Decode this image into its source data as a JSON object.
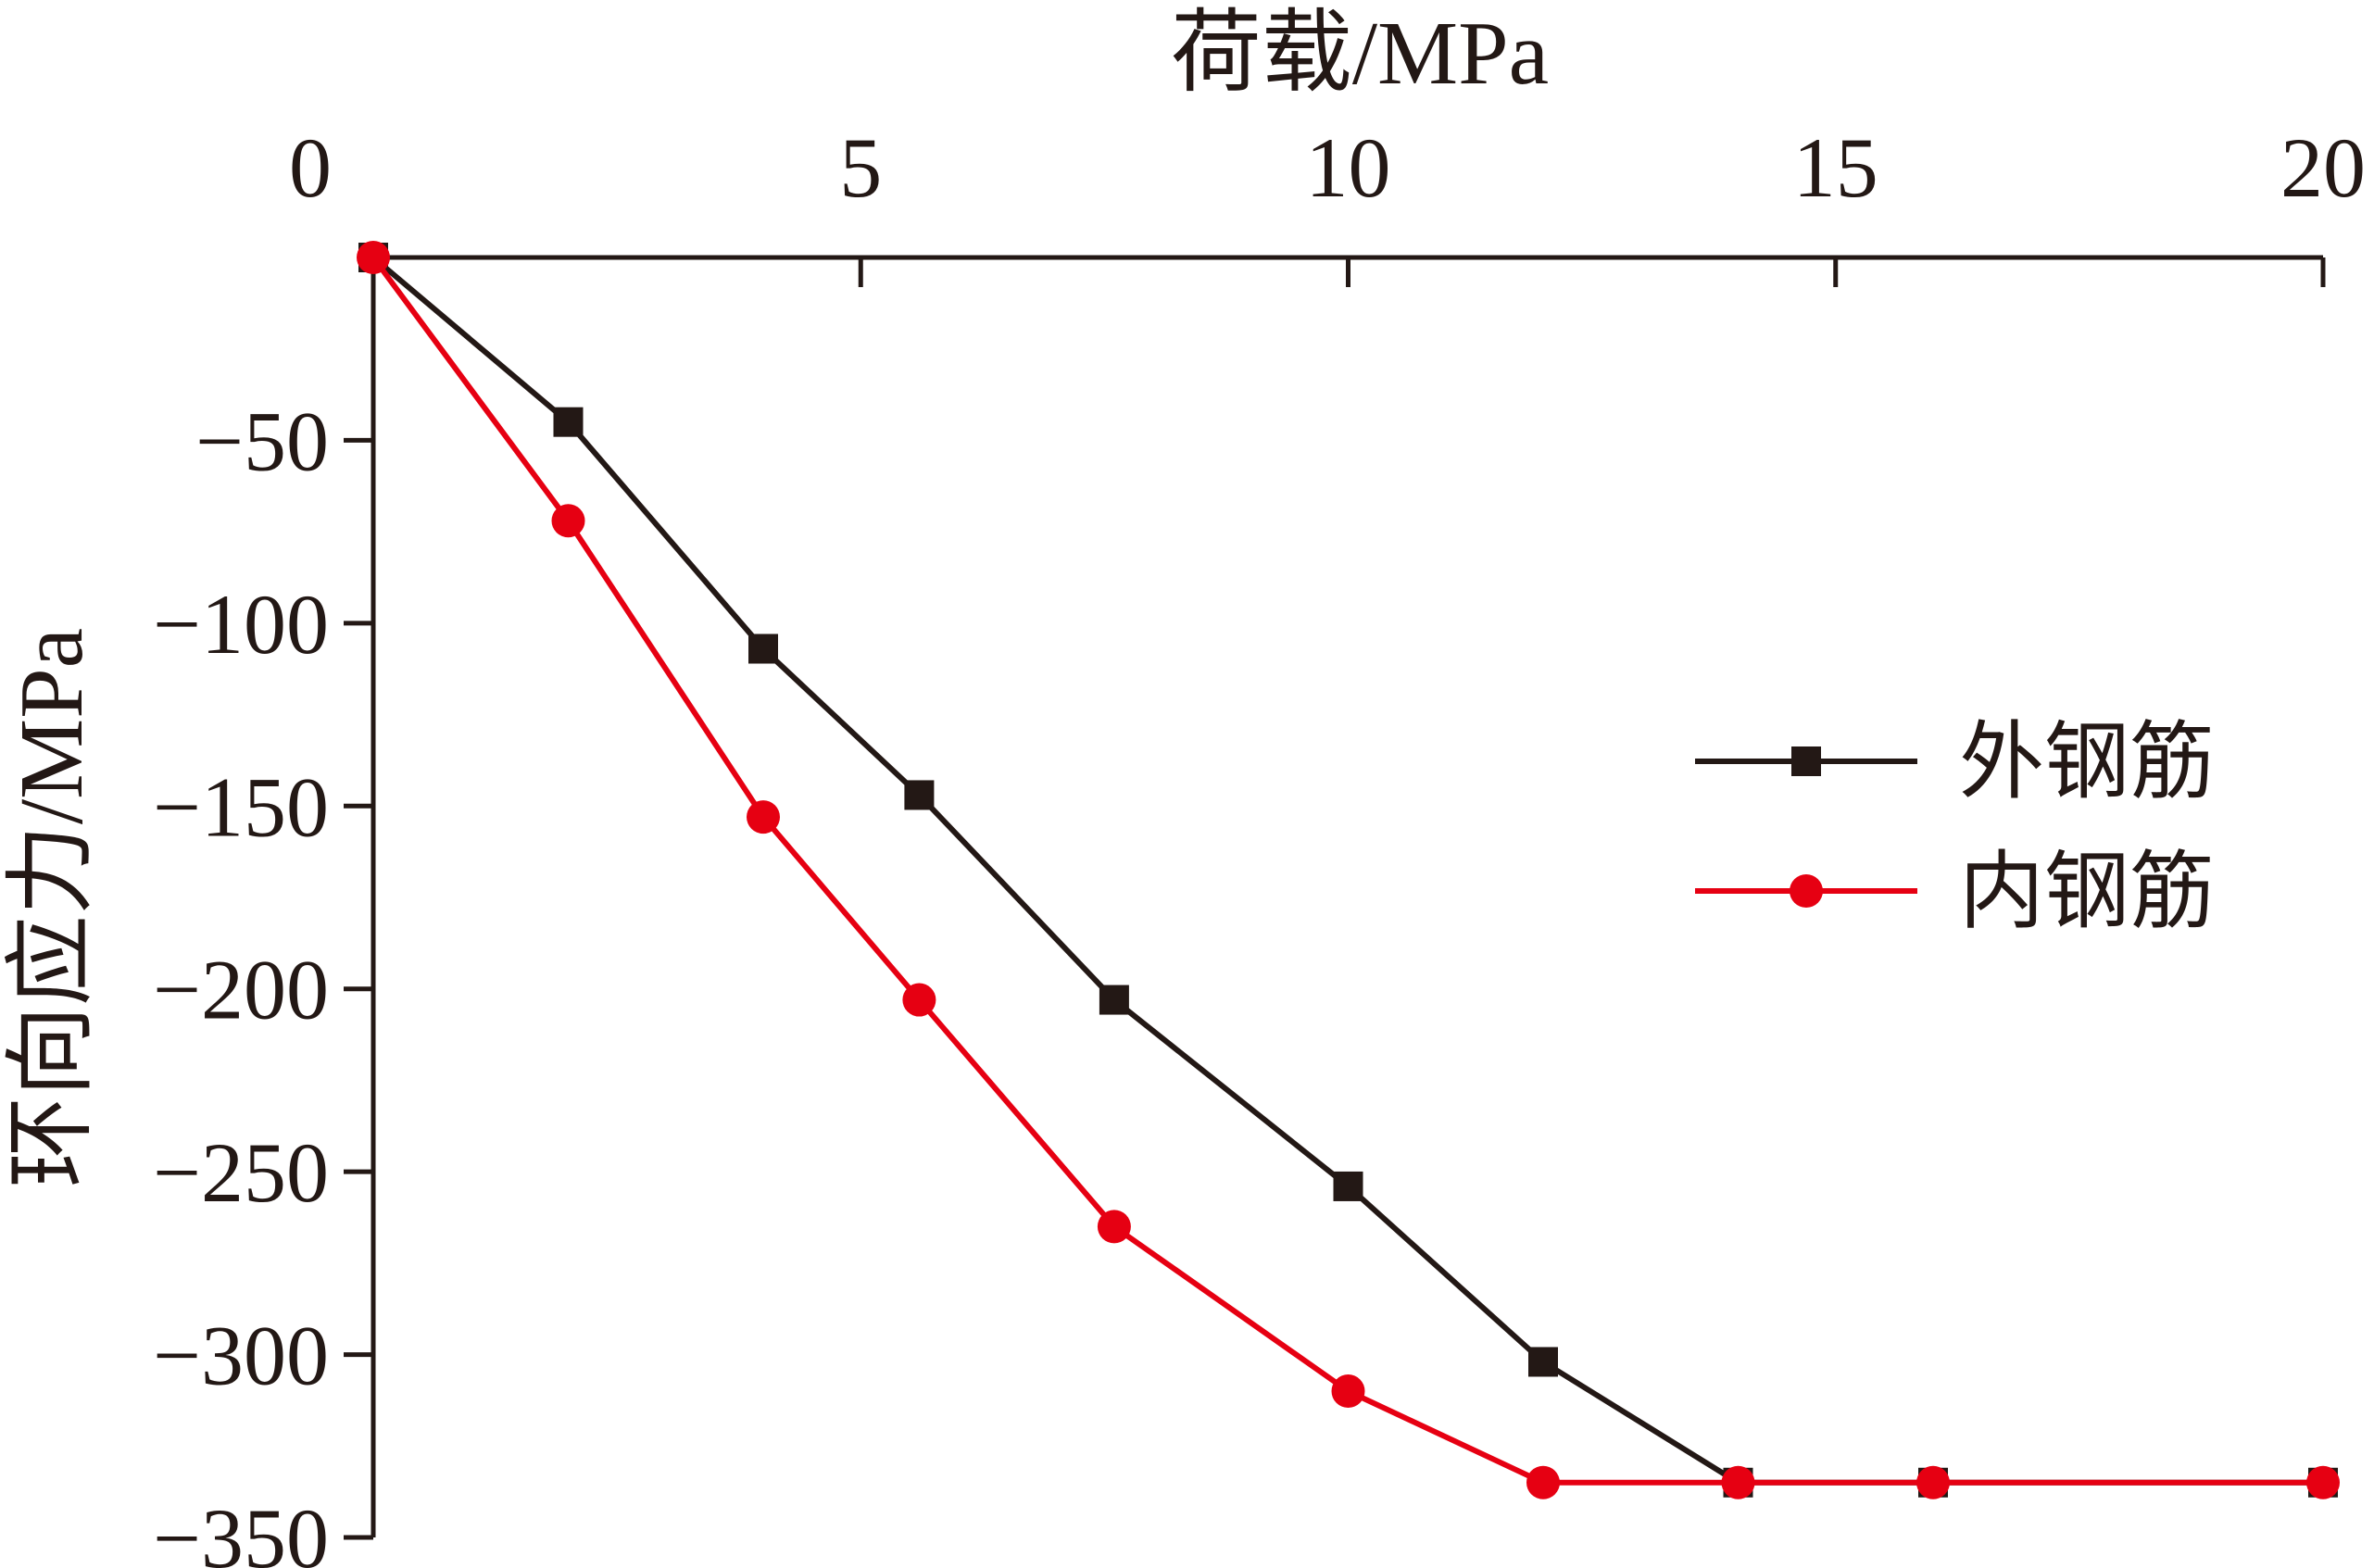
{
  "chart_data": {
    "type": "line",
    "xlabel": "荷载/MPa",
    "ylabel": "环向应力/MPa",
    "x_axis_position": "top",
    "xlim": [
      0,
      20
    ],
    "ylim": [
      -350,
      0
    ],
    "x_ticks": [
      0,
      5,
      10,
      15,
      20
    ],
    "y_ticks": [
      -50,
      -100,
      -150,
      -200,
      -250,
      -300,
      -350
    ],
    "grid": false,
    "legend_position": "right",
    "series": [
      {
        "name": "外钢筋",
        "color": "#231815",
        "marker": "square",
        "x": [
          0,
          2,
          4,
          5.6,
          7.6,
          10,
          12,
          14,
          16,
          20
        ],
        "y": [
          0,
          -45,
          -107,
          -147,
          -203,
          -254,
          -302,
          -335,
          -335,
          -335
        ]
      },
      {
        "name": "内钢筋",
        "color": "#e60012",
        "marker": "circle",
        "x": [
          0,
          2,
          4,
          5.6,
          7.6,
          10,
          12,
          14,
          16,
          20
        ],
        "y": [
          0,
          -72,
          -153,
          -203,
          -265,
          -310,
          -335,
          -335,
          -335,
          -335
        ]
      }
    ]
  }
}
